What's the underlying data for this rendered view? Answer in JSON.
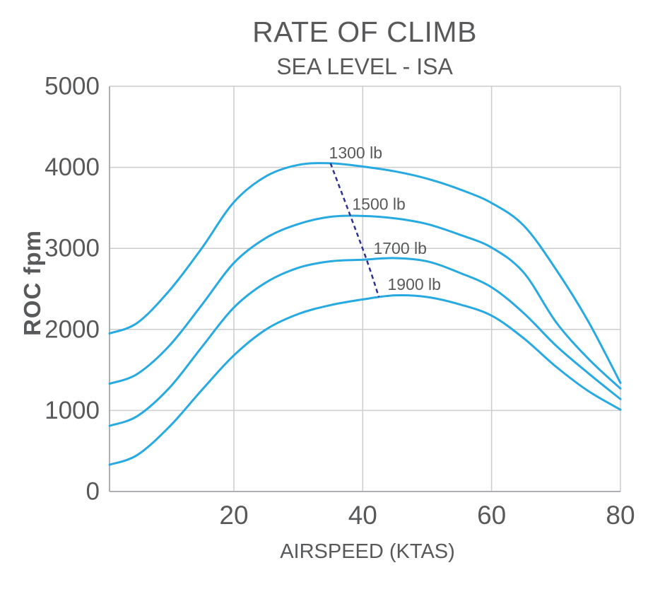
{
  "chart_data": {
    "type": "line",
    "title": "RATE OF CLIMB",
    "subtitle": "SEA LEVEL - ISA",
    "xlabel": "AIRSPEED (KTAS)",
    "ylabel": "ROC fpm",
    "xlim": [
      0.7,
      80
    ],
    "ylim": [
      0,
      5000
    ],
    "x_ticks": [
      20,
      40,
      60,
      80
    ],
    "y_ticks": [
      0,
      1000,
      2000,
      3000,
      4000,
      5000
    ],
    "grid": true,
    "legend_position": "inline-curve-labels",
    "x": [
      0.7,
      5,
      10,
      15,
      20,
      25,
      30,
      35,
      40,
      45,
      50,
      55,
      60,
      65,
      70,
      75,
      80
    ],
    "series": [
      {
        "name": "1300 lb",
        "label_x": 38.9,
        "label_y": 4180,
        "values": [
          1950,
          2080,
          2480,
          3000,
          3570,
          3890,
          4030,
          4050,
          4010,
          3950,
          3860,
          3730,
          3560,
          3280,
          2740,
          2100,
          1340
        ]
      },
      {
        "name": "1500 lb",
        "label_x": 42.5,
        "label_y": 3545,
        "values": [
          1330,
          1450,
          1800,
          2300,
          2820,
          3130,
          3300,
          3390,
          3400,
          3370,
          3300,
          3170,
          3010,
          2700,
          2090,
          1640,
          1270
        ]
      },
      {
        "name": "1700 lb",
        "label_x": 45.8,
        "label_y": 3000,
        "values": [
          810,
          930,
          1280,
          1780,
          2270,
          2580,
          2760,
          2840,
          2860,
          2880,
          2840,
          2700,
          2520,
          2200,
          1800,
          1460,
          1140
        ]
      },
      {
        "name": "1900 lb",
        "label_x": 48.0,
        "label_y": 2555,
        "values": [
          330,
          450,
          800,
          1250,
          1680,
          2000,
          2190,
          2300,
          2370,
          2420,
          2400,
          2310,
          2170,
          1890,
          1540,
          1240,
          1010
        ]
      }
    ],
    "best_climb_speed_line": {
      "points": [
        [
          35,
          4050
        ],
        [
          40.2,
          2950
        ],
        [
          42.5,
          2400
        ]
      ],
      "style": "dashed"
    },
    "colors": {
      "curve": "#27AAE1",
      "dashed_line": "#2E3192",
      "grid": "#CBCDCE",
      "axis": "#ADAFB2",
      "text": "#58595B"
    }
  }
}
